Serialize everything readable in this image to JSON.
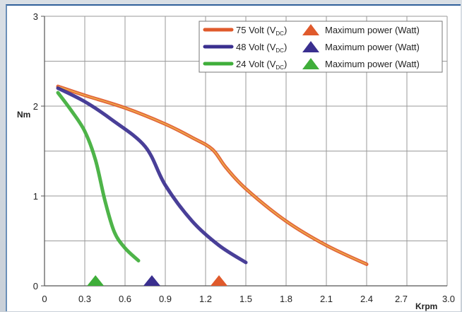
{
  "chart_data": {
    "type": "line",
    "xlabel": "Krpm",
    "ylabel": "Nm",
    "xlim": [
      0,
      3.0
    ],
    "ylim": [
      0,
      3
    ],
    "xticks": [
      "0",
      "0.3",
      "0.6",
      "0.9",
      "1.2",
      "1.5",
      "1.8",
      "2.1",
      "2.4",
      "2.7",
      "3.0"
    ],
    "yticks": [
      "0",
      "1",
      "2",
      "3"
    ],
    "grid": true,
    "legend_position": "top-right",
    "series": [
      {
        "name": "75 Volt (VDC)",
        "name_main": "75 Volt (V",
        "name_sub": "DC",
        "name_end": ")",
        "color": "#e05a2c",
        "x": [
          0.1,
          0.3,
          0.6,
          0.9,
          1.1,
          1.25,
          1.35,
          1.5,
          1.8,
          2.1,
          2.4
        ],
        "y": [
          2.22,
          2.12,
          1.98,
          1.8,
          1.65,
          1.52,
          1.32,
          1.08,
          0.72,
          0.45,
          0.24
        ],
        "max_power_rpm": 1.3
      },
      {
        "name": "48 Volt (VDC)",
        "name_main": "48 Volt (V",
        "name_sub": "DC",
        "name_end": ")",
        "color": "#3a2f8f",
        "x": [
          0.1,
          0.3,
          0.5,
          0.75,
          0.9,
          1.1,
          1.3,
          1.5
        ],
        "y": [
          2.2,
          2.05,
          1.85,
          1.55,
          1.12,
          0.72,
          0.45,
          0.26
        ],
        "max_power_rpm": 0.8
      },
      {
        "name": "24 Volt (VDC)",
        "name_main": "24 Volt (V",
        "name_sub": "DC",
        "name_end": ")",
        "color": "#3fae3a",
        "x": [
          0.1,
          0.2,
          0.3,
          0.38,
          0.45,
          0.52,
          0.6,
          0.7
        ],
        "y": [
          2.15,
          1.95,
          1.72,
          1.4,
          0.95,
          0.6,
          0.42,
          0.28
        ],
        "max_power_rpm": 0.38
      }
    ],
    "legend_marker_label": "Maximum power (Watt)"
  }
}
